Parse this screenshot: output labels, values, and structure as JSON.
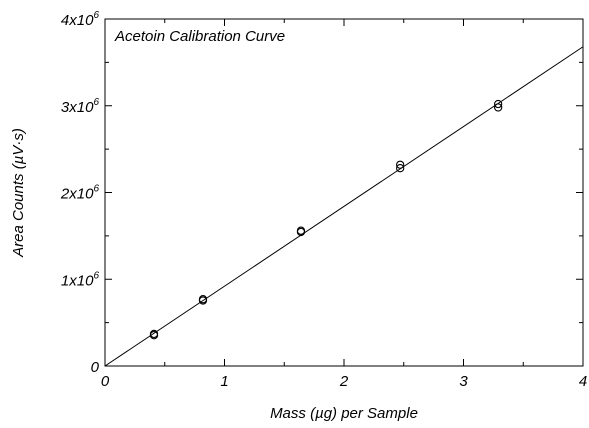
{
  "chart_data": {
    "type": "scatter",
    "title": "Acetoin Calibration Curve",
    "xlabel": "Mass (µg) per Sample",
    "ylabel": "Area Counts (µV·s)",
    "xlim": [
      0,
      4
    ],
    "ylim": [
      0,
      4000000
    ],
    "x_ticks": [
      {
        "value": 0,
        "label": "0"
      },
      {
        "value": 1,
        "label": "1"
      },
      {
        "value": 2,
        "label": "2"
      },
      {
        "value": 3,
        "label": "3"
      },
      {
        "value": 4,
        "label": "4"
      }
    ],
    "y_ticks": [
      {
        "value": 0,
        "label": "0",
        "exp": ""
      },
      {
        "value": 1000000,
        "label": "1x10",
        "exp": "6"
      },
      {
        "value": 2000000,
        "label": "2x10",
        "exp": "6"
      },
      {
        "value": 3000000,
        "label": "3x10",
        "exp": "6"
      },
      {
        "value": 4000000,
        "label": "4x10",
        "exp": "6"
      }
    ],
    "grid": false,
    "series": [
      {
        "marker": "open-circle",
        "points": [
          {
            "x": 0.41,
            "y": 370000
          },
          {
            "x": 0.41,
            "y": 355000
          },
          {
            "x": 0.82,
            "y": 770000
          },
          {
            "x": 0.82,
            "y": 755000
          },
          {
            "x": 1.64,
            "y": 1560000
          },
          {
            "x": 1.64,
            "y": 1545000
          },
          {
            "x": 2.47,
            "y": 2320000
          },
          {
            "x": 2.47,
            "y": 2280000
          },
          {
            "x": 3.29,
            "y": 3020000
          },
          {
            "x": 3.29,
            "y": 2980000
          }
        ]
      }
    ],
    "fit_line": {
      "from": [
        0,
        0
      ],
      "to": [
        4,
        3680000
      ]
    },
    "colors": {
      "axis": "#000000",
      "marker": "#000000",
      "line": "#000000"
    }
  }
}
